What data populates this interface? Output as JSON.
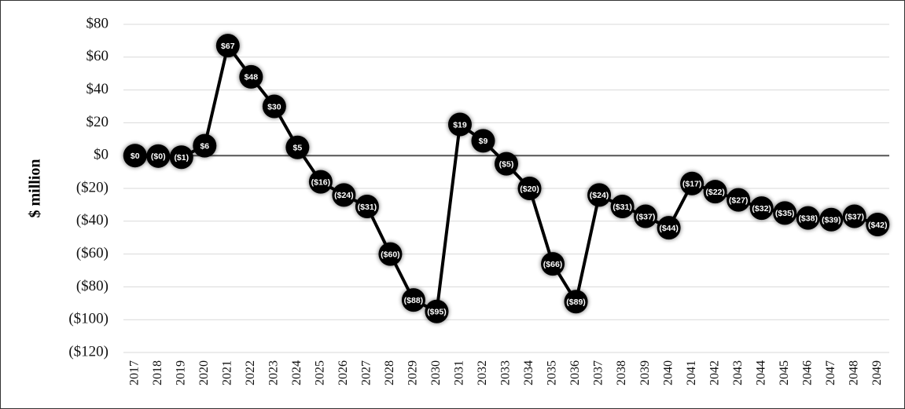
{
  "chart_data": {
    "type": "line",
    "y_label": "$ million",
    "categories": [
      "2017",
      "2018",
      "2019",
      "2020",
      "2021",
      "2022",
      "2023",
      "2024",
      "2025",
      "2026",
      "2027",
      "2028",
      "2029",
      "2030",
      "2031",
      "2032",
      "2033",
      "2034",
      "2035",
      "2036",
      "2037",
      "2038",
      "2039",
      "2040",
      "2041",
      "2042",
      "2043",
      "2044",
      "2045",
      "2046",
      "2047",
      "2048",
      "2049"
    ],
    "values": [
      0,
      -0.3,
      -1,
      6,
      67,
      48,
      30,
      5,
      -16,
      -24,
      -31,
      -60,
      -88,
      -95,
      19,
      9,
      -5,
      -20,
      -66,
      -89,
      -24,
      -31,
      -37,
      -44,
      -17,
      -22,
      -27,
      -32,
      -35,
      -38,
      -39,
      -37,
      -42
    ],
    "value_labels": [
      "$0",
      "($0)",
      "($1)",
      "$6",
      "$67",
      "$48",
      "$30",
      "$5",
      "($16)",
      "($24)",
      "($31)",
      "($60)",
      "($88)",
      "($95)",
      "$19",
      "$9",
      "($5)",
      "($20)",
      "($66)",
      "($89)",
      "($24)",
      "($31)",
      "($37)",
      "($44)",
      "($17)",
      "($22)",
      "($27)",
      "($32)",
      "($35)",
      "($38)",
      "($39)",
      "($37)",
      "($42)"
    ],
    "color": "#000000",
    "ylim": [
      -120,
      80
    ],
    "yticks": [
      {
        "value": -120,
        "label": "($120)"
      },
      {
        "value": -100,
        "label": "($100)"
      },
      {
        "value": -80,
        "label": "($80)"
      },
      {
        "value": -60,
        "label": "($60)"
      },
      {
        "value": -40,
        "label": "($40)"
      },
      {
        "value": -20,
        "label": "($20)"
      },
      {
        "value": 0,
        "label": "$0"
      },
      {
        "value": 20,
        "label": "$20"
      },
      {
        "value": 40,
        "label": "$40"
      },
      {
        "value": 60,
        "label": "$60"
      },
      {
        "value": 80,
        "label": "$80"
      }
    ],
    "grid": true
  }
}
